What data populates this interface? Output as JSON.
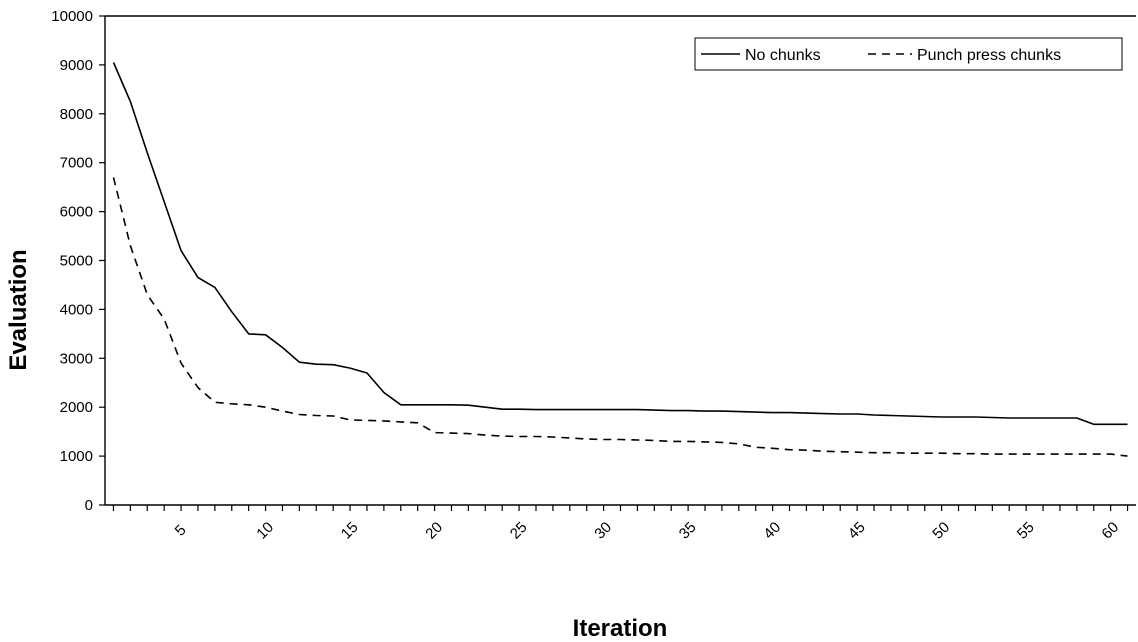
{
  "chart_data": {
    "type": "line",
    "title": "",
    "xlabel": "Iteration",
    "ylabel": "Evaluation",
    "xlim": [
      1,
      61
    ],
    "ylim": [
      0,
      10000
    ],
    "yticks": [
      0,
      1000,
      2000,
      3000,
      4000,
      5000,
      6000,
      7000,
      8000,
      9000,
      10000
    ],
    "xtick_labels": [
      5,
      10,
      15,
      20,
      25,
      30,
      35,
      40,
      45,
      50,
      55,
      60
    ],
    "grid": false,
    "legend_position": "top-right",
    "x": [
      1,
      2,
      3,
      4,
      5,
      6,
      7,
      8,
      9,
      10,
      11,
      12,
      13,
      14,
      15,
      16,
      17,
      18,
      19,
      20,
      21,
      22,
      23,
      24,
      25,
      26,
      27,
      28,
      29,
      30,
      31,
      32,
      33,
      34,
      35,
      36,
      37,
      38,
      39,
      40,
      41,
      42,
      43,
      44,
      45,
      46,
      47,
      48,
      49,
      50,
      51,
      52,
      53,
      54,
      55,
      56,
      57,
      58,
      59,
      60,
      61
    ],
    "series": [
      {
        "name": "No chunks",
        "style": "solid",
        "values": [
          9050,
          8250,
          7200,
          6200,
          5200,
          4650,
          4450,
          3950,
          3500,
          3480,
          3220,
          2920,
          2880,
          2870,
          2800,
          2700,
          2300,
          2050,
          2050,
          2050,
          2050,
          2040,
          2000,
          1960,
          1960,
          1950,
          1950,
          1950,
          1950,
          1950,
          1950,
          1950,
          1940,
          1930,
          1930,
          1920,
          1920,
          1910,
          1900,
          1890,
          1890,
          1880,
          1870,
          1860,
          1860,
          1840,
          1830,
          1820,
          1810,
          1800,
          1800,
          1800,
          1790,
          1780,
          1780,
          1780,
          1780,
          1780,
          1650,
          1650,
          1650
        ]
      },
      {
        "name": "Punch press chunks",
        "style": "dashed",
        "values": [
          6700,
          5300,
          4300,
          3800,
          2900,
          2400,
          2100,
          2070,
          2050,
          2000,
          1920,
          1850,
          1830,
          1820,
          1740,
          1730,
          1720,
          1700,
          1680,
          1480,
          1470,
          1460,
          1430,
          1410,
          1400,
          1400,
          1390,
          1370,
          1350,
          1340,
          1340,
          1330,
          1320,
          1300,
          1300,
          1290,
          1280,
          1250,
          1180,
          1160,
          1130,
          1120,
          1100,
          1090,
          1080,
          1070,
          1070,
          1060,
          1060,
          1060,
          1050,
          1050,
          1040,
          1040,
          1040,
          1040,
          1040,
          1040,
          1040,
          1040,
          1000
        ]
      }
    ]
  }
}
